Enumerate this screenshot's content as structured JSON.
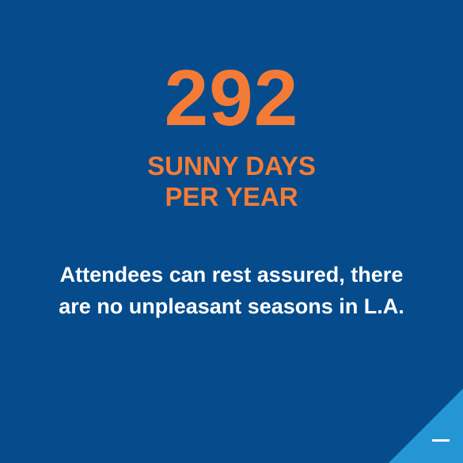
{
  "stat": {
    "number": "292",
    "label_line1": "SUNNY DAYS",
    "label_line2": "PER YEAR"
  },
  "description": {
    "line1": "Attendees can rest assured, there",
    "line2": "are no unpleasant seasons in L.A."
  },
  "colors": {
    "background": "#064c8c",
    "accent": "#f47b35",
    "text": "#ffffff",
    "corner": "#2596d4"
  },
  "icons": {
    "corner": "minus-icon"
  }
}
